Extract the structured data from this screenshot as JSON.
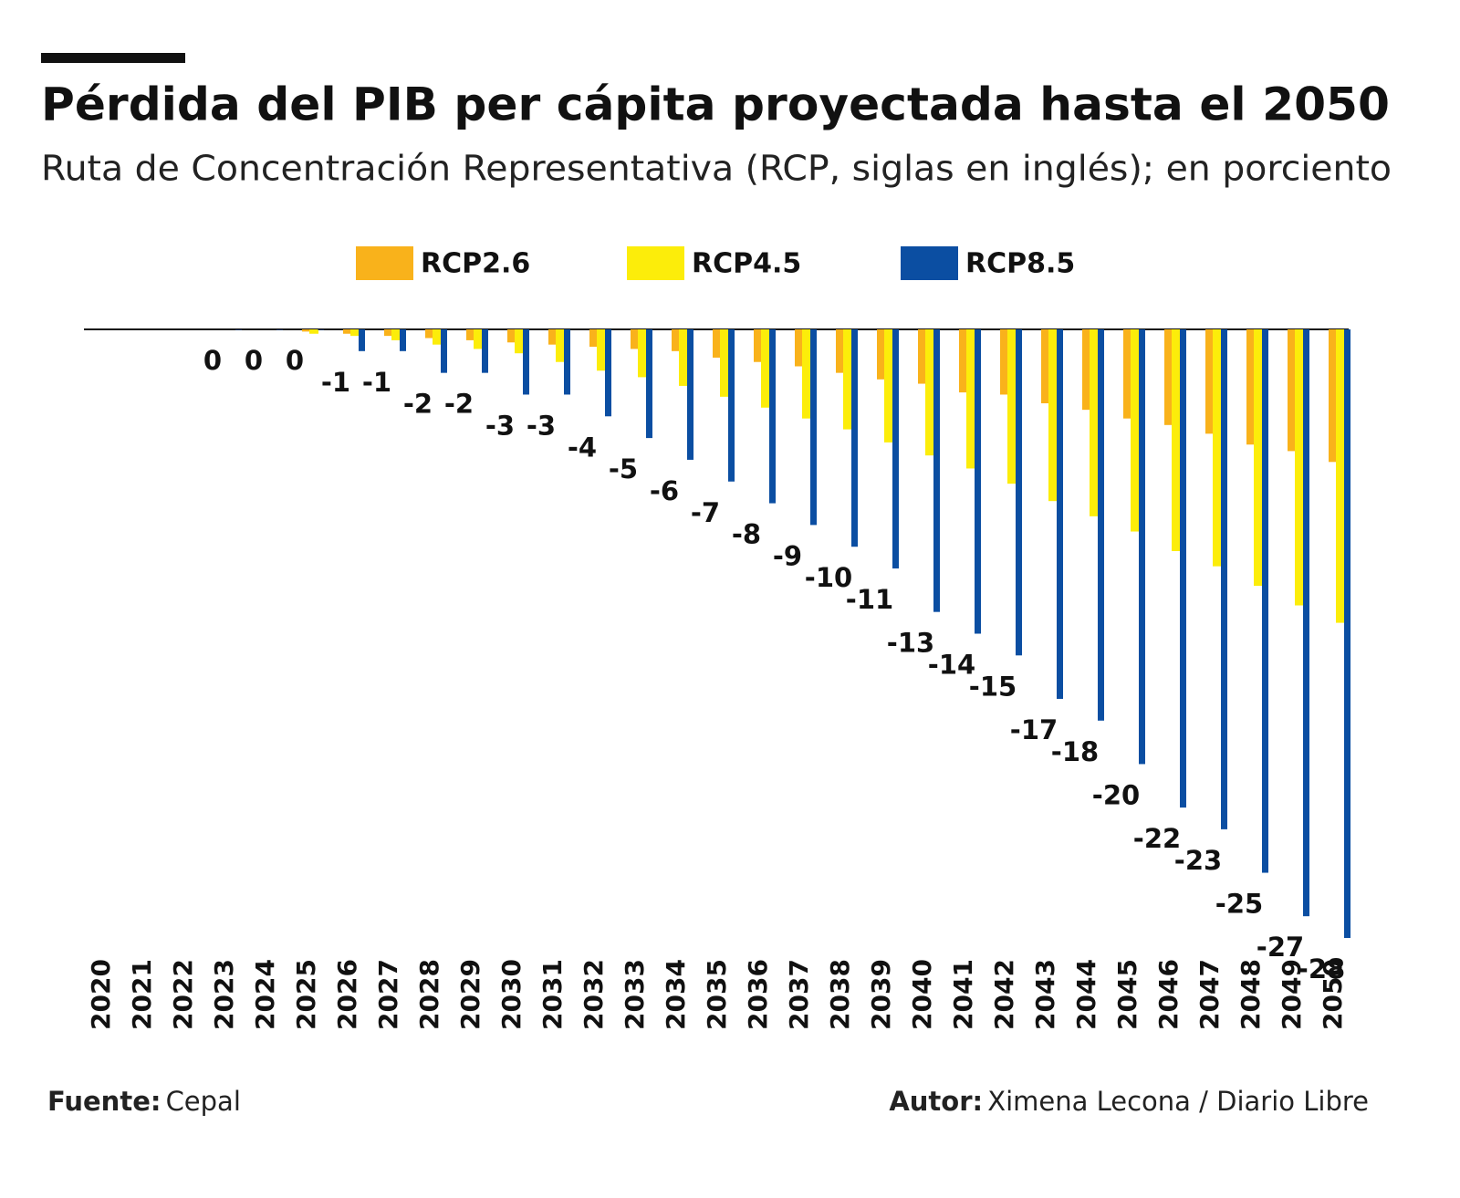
{
  "chart_data": {
    "type": "bar",
    "title": "Pérdida del PIB per cápita proyectada hasta el 2050",
    "subtitle": "Ruta de Concentración Representativa (RCP, siglas en inglés); en porciento",
    "categories": [
      "2020",
      "2021",
      "2022",
      "2023",
      "2024",
      "2025",
      "2026",
      "2027",
      "2028",
      "2029",
      "2030",
      "2031",
      "2032",
      "2033",
      "2034",
      "2035",
      "2036",
      "2037",
      "2038",
      "2039",
      "2040",
      "2041",
      "2042",
      "2043",
      "2044",
      "2045",
      "2046",
      "2047",
      "2048",
      "2049",
      "2050"
    ],
    "series": [
      {
        "name": "RCP2.6",
        "color": "#f9b21b",
        "values": [
          null,
          null,
          null,
          null,
          null,
          -0.1,
          -0.2,
          -0.3,
          -0.4,
          -0.5,
          -0.6,
          -0.7,
          -0.8,
          -0.9,
          -1.0,
          -1.3,
          -1.5,
          -1.7,
          -2.0,
          -2.3,
          -2.5,
          -2.9,
          -3.0,
          -3.4,
          -3.7,
          -4.1,
          -4.4,
          -4.8,
          -5.3,
          -5.6,
          -6.1
        ]
      },
      {
        "name": "RCP4.5",
        "color": "#fced0a",
        "values": [
          null,
          null,
          null,
          null,
          null,
          -0.2,
          -0.3,
          -0.5,
          -0.7,
          -0.9,
          -1.1,
          -1.5,
          -1.9,
          -2.2,
          -2.6,
          -3.1,
          -3.6,
          -4.1,
          -4.6,
          -5.2,
          -5.8,
          -6.4,
          -7.1,
          -7.9,
          -8.6,
          -9.3,
          -10.2,
          -10.9,
          -11.8,
          -12.7,
          -13.5
        ]
      },
      {
        "name": "RCP8.5",
        "color": "#0b4ea2",
        "values": [
          null,
          null,
          null,
          0,
          0,
          0,
          -1,
          -1,
          -2,
          -2,
          -3,
          -3,
          -4,
          -5,
          -6,
          -7,
          -8,
          -9,
          -10,
          -11,
          -13,
          -14,
          -15,
          -17,
          -18,
          -20,
          -22,
          -23,
          -25,
          -27,
          -28
        ]
      }
    ],
    "ylim": [
      -28,
      0
    ],
    "footer": {
      "source_label": "Fuente:",
      "source": "Cepal",
      "author_label": "Autor:",
      "author": "Ximena Lecona / Diario Libre"
    }
  }
}
